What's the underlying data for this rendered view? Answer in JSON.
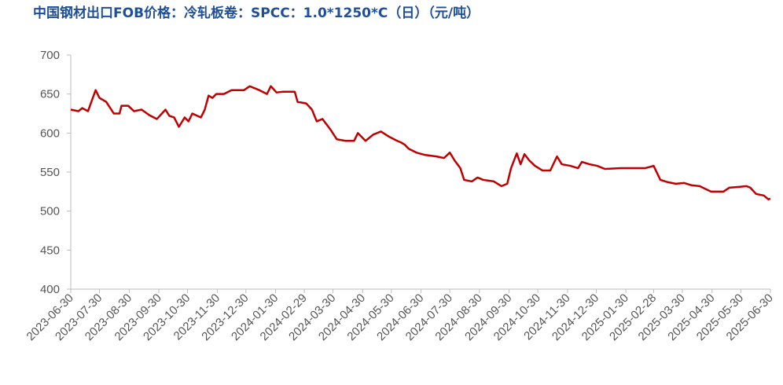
{
  "chart_data": {
    "type": "line",
    "title": "中国钢材出口FOB价格：冷轧板卷：SPCC：1.0*1250*C（日）（元/吨）",
    "x": [
      "2023-06-30",
      "2023-07-08",
      "2023-07-12",
      "2023-07-18",
      "2023-07-23",
      "2023-07-26",
      "2023-07-30",
      "2023-08-06",
      "2023-08-14",
      "2023-08-20",
      "2023-08-22",
      "2023-08-29",
      "2023-09-04",
      "2023-09-12",
      "2023-09-20",
      "2023-09-28",
      "2023-10-07",
      "2023-10-11",
      "2023-10-16",
      "2023-10-21",
      "2023-10-27",
      "2023-10-31",
      "2023-11-04",
      "2023-11-13",
      "2023-11-17",
      "2023-11-21",
      "2023-11-25",
      "2023-11-29",
      "2023-12-07",
      "2023-12-15",
      "2023-12-28",
      "2024-01-03",
      "2024-01-13",
      "2024-01-21",
      "2024-01-25",
      "2024-01-31",
      "2024-02-07",
      "2024-02-19",
      "2024-02-22",
      "2024-03-02",
      "2024-03-08",
      "2024-03-13",
      "2024-03-19",
      "2024-03-27",
      "2024-04-03",
      "2024-04-12",
      "2024-04-21",
      "2024-04-25",
      "2024-05-03",
      "2024-05-11",
      "2024-05-19",
      "2024-05-28",
      "2024-06-05",
      "2024-06-09",
      "2024-06-13",
      "2024-06-17",
      "2024-06-25",
      "2024-07-04",
      "2024-07-16",
      "2024-07-24",
      "2024-07-30",
      "2024-08-04",
      "2024-08-10",
      "2024-08-14",
      "2024-08-22",
      "2024-08-28",
      "2024-09-03",
      "2024-09-14",
      "2024-09-22",
      "2024-09-28",
      "2024-10-02",
      "2024-10-08",
      "2024-10-12",
      "2024-10-16",
      "2024-10-21",
      "2024-10-27",
      "2024-11-04",
      "2024-11-12",
      "2024-11-19",
      "2024-11-24",
      "2024-12-03",
      "2024-12-11",
      "2024-12-15",
      "2024-12-23",
      "2024-12-31",
      "2025-01-08",
      "2025-01-25",
      "2025-02-10",
      "2025-02-19",
      "2025-02-28",
      "2025-03-07",
      "2025-03-15",
      "2025-03-23",
      "2025-04-01",
      "2025-04-09",
      "2025-04-17",
      "2025-04-29",
      "2025-05-12",
      "2025-05-18",
      "2025-05-28",
      "2025-06-05",
      "2025-06-09",
      "2025-06-15",
      "2025-06-23",
      "2025-06-28",
      "2025-06-30"
    ],
    "series": [
      {
        "color": "#c00000",
        "values": [
          630,
          628,
          632,
          628,
          645,
          655,
          645,
          640,
          625,
          625,
          635,
          635,
          628,
          630,
          623,
          618,
          630,
          622,
          620,
          608,
          620,
          615,
          625,
          620,
          630,
          648,
          645,
          650,
          650,
          655,
          655,
          660,
          655,
          650,
          660,
          652,
          653,
          653,
          640,
          638,
          630,
          615,
          618,
          605,
          592,
          590,
          590,
          600,
          590,
          598,
          602,
          595,
          590,
          588,
          585,
          580,
          575,
          572,
          570,
          568,
          575,
          565,
          555,
          540,
          538,
          543,
          540,
          538,
          532,
          535,
          555,
          574,
          560,
          573,
          565,
          558,
          552,
          552,
          570,
          560,
          558,
          555,
          563,
          560,
          558,
          554,
          555,
          555,
          555,
          558,
          540,
          537,
          535,
          536,
          533,
          532,
          525,
          525,
          530,
          531,
          532,
          530,
          522,
          520,
          515,
          516
        ]
      }
    ],
    "xlim": [
      "2023-06-30",
      "2025-06-30"
    ],
    "xticks": [
      "2023-06-30",
      "2023-07-30",
      "2023-08-30",
      "2023-09-30",
      "2023-10-30",
      "2023-11-30",
      "2023-12-30",
      "2024-01-30",
      "2024-02-29",
      "2024-03-30",
      "2024-04-30",
      "2024-05-30",
      "2024-06-30",
      "2024-07-30",
      "2024-08-30",
      "2024-09-30",
      "2024-10-30",
      "2024-11-30",
      "2024-12-30",
      "2025-01-30",
      "2025-02-28",
      "2025-03-30",
      "2025-04-30",
      "2025-05-30",
      "2025-06-30"
    ],
    "ylim": [
      400,
      700
    ],
    "yticks": [
      400,
      450,
      500,
      550,
      600,
      650,
      700
    ],
    "grid": false
  }
}
